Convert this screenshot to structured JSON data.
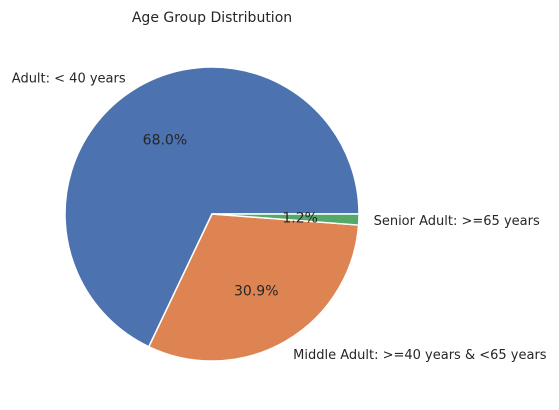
{
  "chart_data": {
    "type": "pie",
    "title": "Age Group Distribution",
    "slices": [
      {
        "label": "Adult: < 40 years",
        "value": 68.0,
        "pct_label": "68.0%",
        "color": "#4c72b0"
      },
      {
        "label": "Middle Adult: >=40 years & <65 years",
        "value": 30.9,
        "pct_label": "30.9%",
        "color": "#dd8452"
      },
      {
        "label": "Senior Adult: >=65 years",
        "value": 1.2,
        "pct_label": "1.2%",
        "color": "#55a868"
      }
    ],
    "start_angle_deg": 0,
    "direction": "counterclockwise",
    "edge_color": "#ffffff"
  }
}
